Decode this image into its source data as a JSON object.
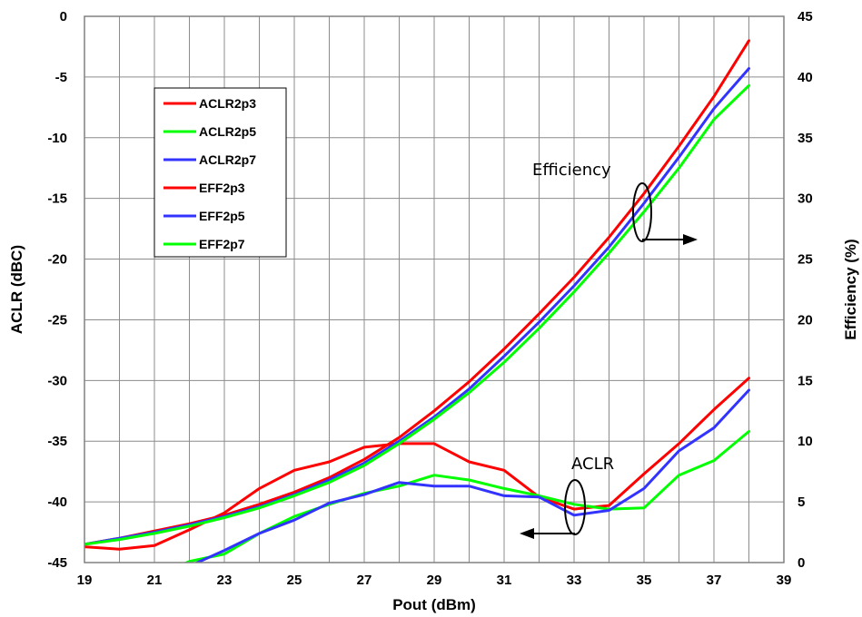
{
  "chart_data": {
    "type": "line",
    "xlabel": "Pout (dBm)",
    "ylabel": "ACLR (dBC)",
    "y2label": "Efficiency (%)",
    "xlim": [
      19,
      39
    ],
    "ylim": [
      -45,
      0
    ],
    "y2lim": [
      0,
      45
    ],
    "x_ticks": [
      19,
      21,
      23,
      25,
      27,
      29,
      31,
      33,
      35,
      37,
      39
    ],
    "y_ticks": [
      0,
      -5,
      -10,
      -15,
      -20,
      -25,
      -30,
      -35,
      -40,
      -45
    ],
    "y2_ticks": [
      45,
      40,
      35,
      30,
      25,
      20,
      15,
      10,
      5,
      0
    ],
    "grid": true,
    "legend_position": "top-left",
    "annotations": [
      "Efficiency",
      "ACLR"
    ],
    "series": [
      {
        "name": "ACLR2p3",
        "axis": "left",
        "color": "#ff0000",
        "x": [
          19,
          20,
          21,
          22,
          23,
          24,
          25,
          26,
          27,
          28,
          29,
          30,
          31,
          32,
          33,
          34,
          35,
          36,
          37,
          38
        ],
        "y": [
          -43.7,
          -43.9,
          -43.6,
          -42.3,
          -40.9,
          -38.9,
          -37.4,
          -36.7,
          -35.5,
          -35.2,
          -35.2,
          -36.7,
          -37.4,
          -39.6,
          -40.6,
          -40.3,
          -37.7,
          -35.2,
          -32.4,
          -29.8
        ]
      },
      {
        "name": "ACLR2p5",
        "axis": "left",
        "color": "#00ff00",
        "x": [
          19,
          20,
          21,
          22,
          23,
          24,
          25,
          26,
          27,
          28,
          29,
          30,
          31,
          32,
          33,
          34,
          35,
          36,
          37,
          38
        ],
        "y": [
          -48.5,
          -47.5,
          -46.2,
          -44.9,
          -44.3,
          -42.6,
          -41.2,
          -40.2,
          -39.3,
          -38.7,
          -37.8,
          -38.2,
          -38.9,
          -39.5,
          -40.2,
          -40.6,
          -40.5,
          -37.8,
          -36.6,
          -34.2
        ]
      },
      {
        "name": "ACLR2p7",
        "axis": "left",
        "color": "#3333ff",
        "x": [
          19,
          20,
          21,
          22,
          23,
          24,
          25,
          26,
          27,
          28,
          29,
          30,
          31,
          32,
          33,
          34,
          35,
          36,
          37,
          38
        ],
        "y": [
          -45.1,
          -46.4,
          -46.3,
          -45.3,
          -44.0,
          -42.6,
          -41.5,
          -40.1,
          -39.4,
          -38.4,
          -38.7,
          -38.7,
          -39.5,
          -39.6,
          -41.1,
          -40.7,
          -38.9,
          -35.8,
          -33.9,
          -30.8
        ]
      },
      {
        "name": "EFF2p3",
        "axis": "right",
        "color": "#ff0000",
        "x": [
          19,
          20,
          21,
          22,
          23,
          24,
          25,
          26,
          27,
          28,
          29,
          30,
          31,
          32,
          33,
          34,
          35,
          36,
          37,
          38
        ],
        "y": [
          1.5,
          2.0,
          2.6,
          3.2,
          3.9,
          4.8,
          5.8,
          7.0,
          8.5,
          10.3,
          12.5,
          14.9,
          17.6,
          20.5,
          23.5,
          26.8,
          30.4,
          34.3,
          38.4,
          43.0
        ]
      },
      {
        "name": "EFF2p5",
        "axis": "right",
        "color": "#3333ff",
        "x": [
          19,
          20,
          21,
          22,
          23,
          24,
          25,
          26,
          27,
          28,
          29,
          30,
          31,
          32,
          33,
          34,
          35,
          36,
          37,
          38
        ],
        "y": [
          1.5,
          2.0,
          2.5,
          3.1,
          3.8,
          4.6,
          5.6,
          6.8,
          8.2,
          10.0,
          12.0,
          14.3,
          17.0,
          19.8,
          22.8,
          26.0,
          29.6,
          33.4,
          37.4,
          40.7
        ]
      },
      {
        "name": "EFF2p7",
        "axis": "right",
        "color": "#00ff00",
        "x": [
          19,
          20,
          21,
          22,
          23,
          24,
          25,
          26,
          27,
          28,
          29,
          30,
          31,
          32,
          33,
          34,
          35,
          36,
          37,
          38
        ],
        "y": [
          1.5,
          1.9,
          2.4,
          3.0,
          3.7,
          4.5,
          5.5,
          6.6,
          8.0,
          9.8,
          11.8,
          14.0,
          16.5,
          19.3,
          22.3,
          25.5,
          28.9,
          32.5,
          36.5,
          39.3
        ]
      }
    ]
  }
}
